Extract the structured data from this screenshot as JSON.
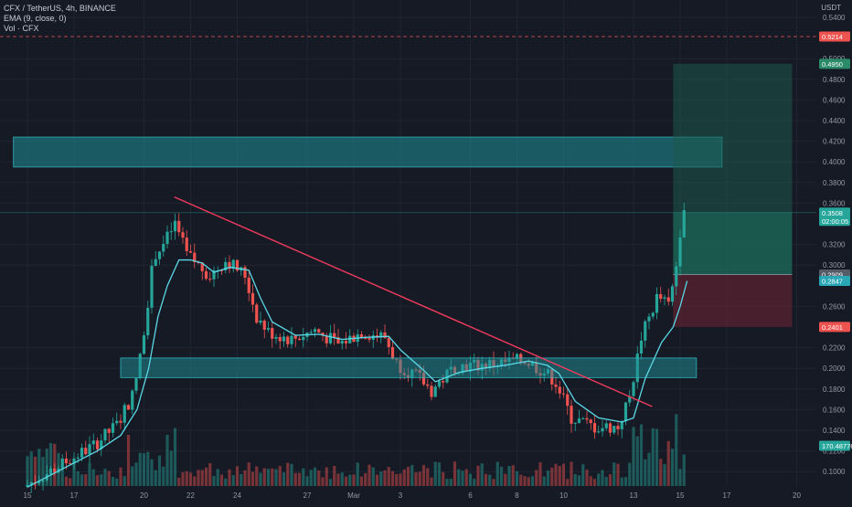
{
  "legend": {
    "symbol_line": "CFX / TetherUS, 4h, BINANCE",
    "ema_line": "EMA (9, close, 0)",
    "vol_line": "Vol · CFX"
  },
  "axis": {
    "currency": "USDT"
  },
  "colors": {
    "background": "#161a25",
    "up": "#26a69a",
    "down": "#ef5350",
    "ema": "#5ad8e6",
    "trendline": "#f23b5d",
    "zone": "#1f8f98",
    "target_zone": "#1e5a4f",
    "stop_zone": "#5e2430"
  },
  "price_badges": {
    "dashed_level": "0.5214",
    "target": "0.4950",
    "current": "0.3508",
    "countdown": "02:00:05",
    "entry": "0.2909",
    "ema": "0.2847",
    "stop": "0.2401",
    "volume": "170.48776"
  },
  "chart_data": {
    "type": "candlestick",
    "title": "CFX / TetherUS, 4h, BINANCE",
    "ylabel": "USDT",
    "ylim": [
      0.08,
      0.55
    ],
    "grid": true,
    "legend_position": "top-left",
    "y_ticks": [
      "0.5400",
      "0.5000",
      "0.4800",
      "0.4600",
      "0.4400",
      "0.4200",
      "0.4000",
      "0.3800",
      "0.3600",
      "0.3200",
      "0.3000",
      "0.2600",
      "0.2200",
      "0.2000",
      "0.1800",
      "0.1600",
      "0.1400",
      "0.1200",
      "0.1000"
    ],
    "x_ticks": [
      {
        "label": "15",
        "day": 0
      },
      {
        "label": "17",
        "day": 2
      },
      {
        "label": "20",
        "day": 5
      },
      {
        "label": "22",
        "day": 7
      },
      {
        "label": "24",
        "day": 9
      },
      {
        "label": "27",
        "day": 12
      },
      {
        "label": "Mar",
        "day": 14
      },
      {
        "label": "3",
        "day": 16
      },
      {
        "label": "6",
        "day": 19
      },
      {
        "label": "8",
        "day": 21
      },
      {
        "label": "10",
        "day": 23
      },
      {
        "label": "13",
        "day": 26
      },
      {
        "label": "15",
        "day": 28
      },
      {
        "label": "17",
        "day": 30
      },
      {
        "label": "20",
        "day": 33
      }
    ],
    "trend_path": [
      [
        0,
        0.085
      ],
      [
        3,
        0.125
      ],
      [
        4,
        0.145
      ],
      [
        4.7,
        0.175
      ],
      [
        5.0,
        0.21
      ],
      [
        5.3,
        0.26
      ],
      [
        5.6,
        0.31
      ],
      [
        6.0,
        0.32
      ],
      [
        6.5,
        0.34
      ],
      [
        7.0,
        0.31
      ],
      [
        7.5,
        0.3
      ],
      [
        8.0,
        0.29
      ],
      [
        8.7,
        0.305
      ],
      [
        9.5,
        0.29
      ],
      [
        10.0,
        0.25
      ],
      [
        10.5,
        0.235
      ],
      [
        11.5,
        0.228
      ],
      [
        12.5,
        0.237
      ],
      [
        13.5,
        0.223
      ],
      [
        14.5,
        0.235
      ],
      [
        15.5,
        0.23
      ],
      [
        16.0,
        0.205
      ],
      [
        17.0,
        0.19
      ],
      [
        17.5,
        0.178
      ],
      [
        18.5,
        0.202
      ],
      [
        19.5,
        0.203
      ],
      [
        20.5,
        0.205
      ],
      [
        21.5,
        0.208
      ],
      [
        22.3,
        0.197
      ],
      [
        22.8,
        0.188
      ],
      [
        23.5,
        0.152
      ],
      [
        24.5,
        0.143
      ],
      [
        25.5,
        0.143
      ],
      [
        26.0,
        0.172
      ],
      [
        26.5,
        0.23
      ],
      [
        27.2,
        0.27
      ],
      [
        27.7,
        0.26
      ],
      [
        28.0,
        0.3
      ],
      [
        28.3,
        0.36
      ]
    ],
    "ema_path": [
      [
        0,
        0.085
      ],
      [
        3,
        0.12
      ],
      [
        4,
        0.135
      ],
      [
        4.7,
        0.16
      ],
      [
        5.2,
        0.2
      ],
      [
        5.6,
        0.25
      ],
      [
        6.0,
        0.28
      ],
      [
        6.5,
        0.305
      ],
      [
        7.0,
        0.305
      ],
      [
        7.5,
        0.302
      ],
      [
        8.0,
        0.293
      ],
      [
        8.7,
        0.298
      ],
      [
        9.5,
        0.295
      ],
      [
        10.0,
        0.268
      ],
      [
        10.5,
        0.245
      ],
      [
        11.5,
        0.232
      ],
      [
        12.5,
        0.233
      ],
      [
        13.5,
        0.228
      ],
      [
        14.5,
        0.23
      ],
      [
        15.5,
        0.231
      ],
      [
        16.0,
        0.218
      ],
      [
        17.0,
        0.198
      ],
      [
        17.5,
        0.187
      ],
      [
        18.5,
        0.196
      ],
      [
        19.5,
        0.2
      ],
      [
        20.5,
        0.203
      ],
      [
        21.5,
        0.207
      ],
      [
        22.3,
        0.203
      ],
      [
        22.8,
        0.195
      ],
      [
        23.5,
        0.168
      ],
      [
        24.5,
        0.152
      ],
      [
        25.5,
        0.148
      ],
      [
        26.0,
        0.152
      ],
      [
        26.5,
        0.19
      ],
      [
        27.2,
        0.225
      ],
      [
        27.7,
        0.24
      ],
      [
        28.0,
        0.26
      ],
      [
        28.3,
        0.2847
      ]
    ],
    "volume_max": 170,
    "trendline": {
      "start": {
        "day": 6.3,
        "price": 0.366
      },
      "end": {
        "day": 26.8,
        "price": 0.163
      }
    },
    "support_zone": {
      "day_start": 4.0,
      "day_end": 28.7,
      "price_low": 0.191,
      "price_high": 0.21
    },
    "resistance_zone": {
      "day_start": -0.6,
      "day_end": 29.8,
      "price_low": 0.395,
      "price_high": 0.424
    },
    "long_position": {
      "day_start": 27.7,
      "day_end": 32.8,
      "entry": 0.2909,
      "target": 0.495,
      "stop": 0.2401
    },
    "dashed_level": 0.5214,
    "current_price": 0.3508
  }
}
